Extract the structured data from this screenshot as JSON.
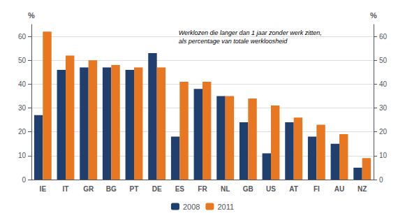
{
  "chart_data": {
    "type": "bar",
    "categories": [
      "IE",
      "IT",
      "GR",
      "BG",
      "PT",
      "DE",
      "ES",
      "FR",
      "NL",
      "GB",
      "US",
      "AT",
      "FI",
      "AU",
      "NZ"
    ],
    "series": [
      {
        "name": "2008",
        "color": "#1f3f6e",
        "values": [
          27,
          46,
          47,
          47,
          46,
          53,
          18,
          38,
          35,
          24,
          11,
          24,
          18,
          15,
          5
        ]
      },
      {
        "name": "2011",
        "color": "#e87722",
        "values": [
          62,
          52,
          50,
          48,
          47,
          47,
          41,
          41,
          35,
          34,
          31,
          26,
          23,
          19,
          9
        ]
      }
    ],
    "ylabel": "%",
    "y2label": "%",
    "ylim": [
      0,
      65
    ],
    "yticks": [
      0,
      10,
      20,
      30,
      40,
      50,
      60
    ],
    "y2lim": [
      0,
      65
    ],
    "y2ticks": [
      0,
      10,
      20,
      30,
      40,
      50,
      60
    ],
    "annotation": "Werklozen die langer dan 1 jaar zonder werk zitten,\nals percentage van totale werkloosheid",
    "grid": true,
    "legend": "bottom"
  }
}
